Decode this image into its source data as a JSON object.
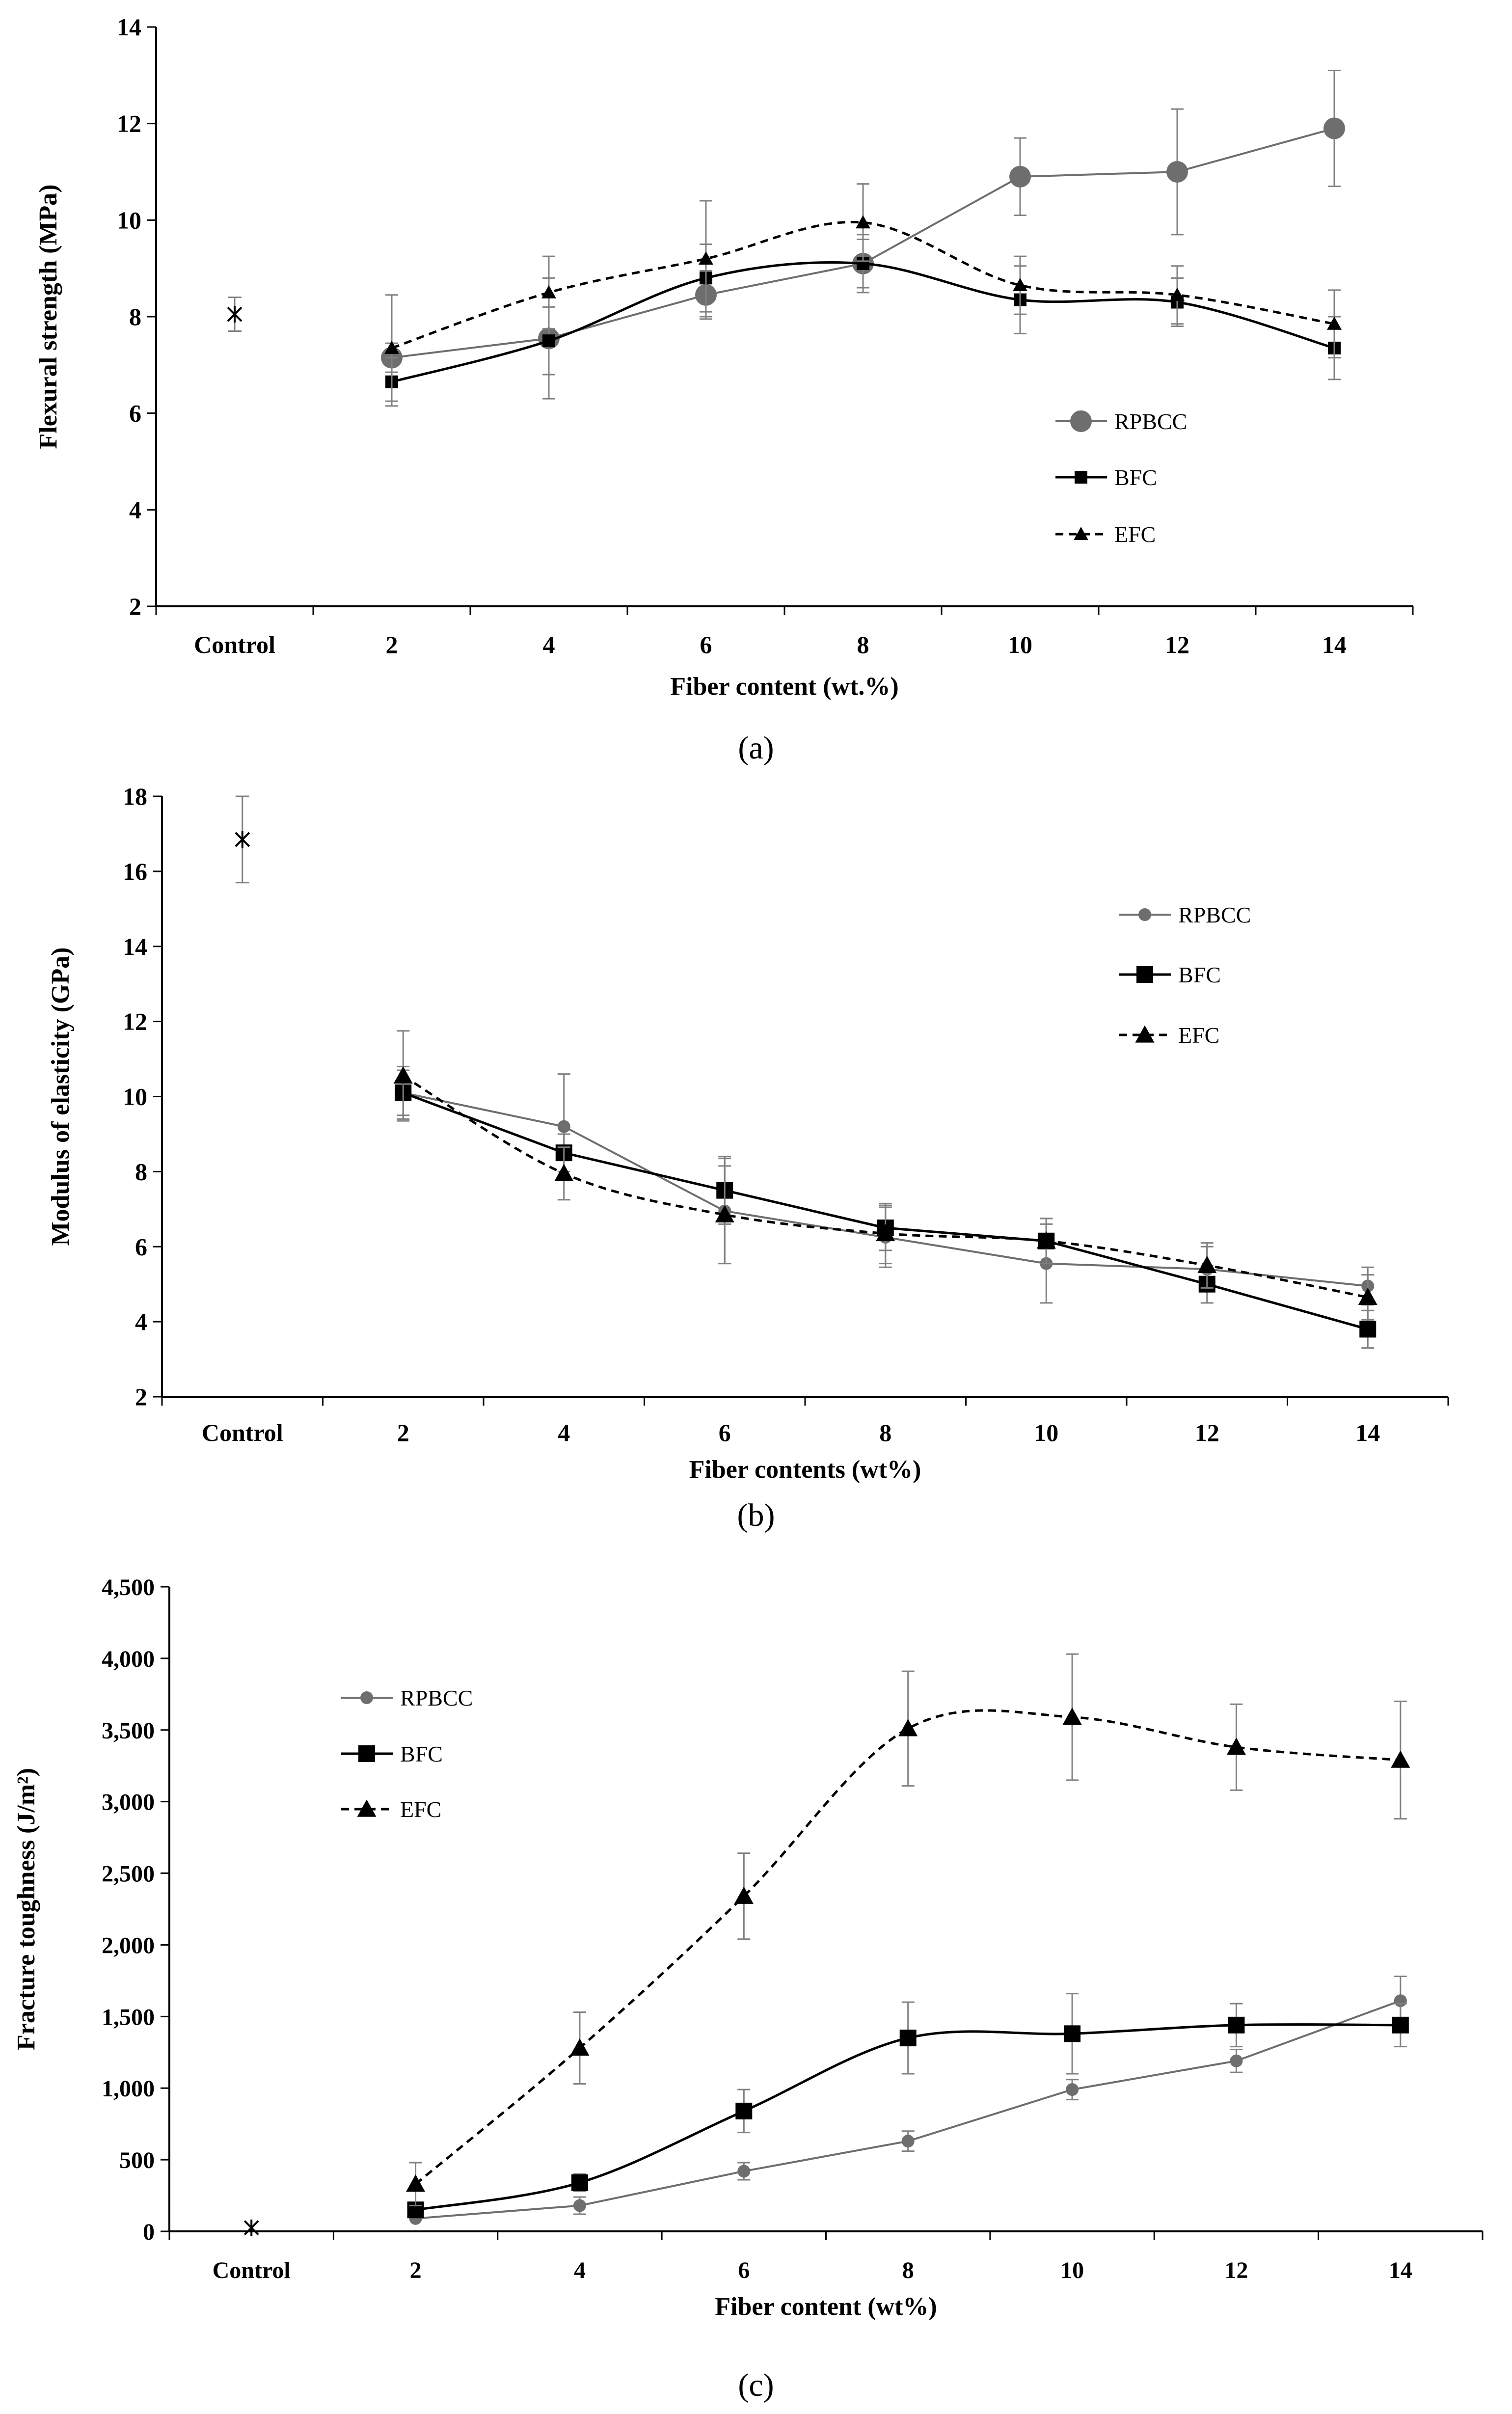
{
  "figure": {
    "panel_captions": [
      "(a)",
      "(b)",
      "(c)"
    ]
  },
  "colors": {
    "rpbcc": "#6e6e6e",
    "bfc": "#000000",
    "efc": "#000000",
    "axis": "#000000",
    "errorbar": "#808080"
  },
  "chart_data": [
    {
      "type": "line",
      "caption": "(a)",
      "title": "",
      "xlabel": "Fiber content (wt.%)",
      "ylabel": "Flexural strength (MPa)",
      "categories": [
        "Control",
        "2",
        "4",
        "6",
        "8",
        "10",
        "12",
        "14"
      ],
      "ylim": [
        2,
        14
      ],
      "yticks": [
        2,
        4,
        6,
        8,
        10,
        12,
        14
      ],
      "ytick_labels": [
        "2",
        "4",
        "6",
        "8",
        "10",
        "12",
        "14"
      ],
      "grid": false,
      "legend": "right-middle",
      "control": {
        "value": 8.05,
        "err": 0.35
      },
      "series": [
        {
          "name": "RPBCC",
          "marker": "circle",
          "marker_size": "large",
          "dash": "solid",
          "color_key": "rpbcc",
          "smooth": false,
          "values": [
            null,
            7.15,
            7.55,
            8.45,
            9.1,
            10.9,
            11.0,
            11.9
          ],
          "errors": [
            null,
            0.3,
            1.25,
            0.5,
            0.6,
            0.8,
            1.3,
            1.2
          ]
        },
        {
          "name": "BFC",
          "marker": "square",
          "marker_size": "small",
          "dash": "solid",
          "color_key": "bfc",
          "smooth": true,
          "values": [
            null,
            6.65,
            7.5,
            8.8,
            9.1,
            8.35,
            8.3,
            7.35
          ],
          "errors": [
            null,
            0.5,
            0.7,
            0.7,
            0.5,
            0.7,
            0.5,
            0.65
          ]
        },
        {
          "name": "EFC",
          "marker": "triangle",
          "marker_size": "small",
          "dash": "dashed",
          "color_key": "efc",
          "smooth": true,
          "values": [
            null,
            7.35,
            8.5,
            9.2,
            9.95,
            8.65,
            8.45,
            7.85
          ],
          "errors": [
            null,
            1.1,
            0.75,
            1.2,
            0.8,
            0.6,
            0.6,
            0.7
          ]
        }
      ]
    },
    {
      "type": "line",
      "caption": "(b)",
      "title": "",
      "xlabel": "Fiber contents (wt%)",
      "ylabel": "Modulus of elasticity (GPa)",
      "categories": [
        "Control",
        "2",
        "4",
        "6",
        "8",
        "10",
        "12",
        "14"
      ],
      "ylim": [
        2,
        18
      ],
      "yticks": [
        2,
        4,
        6,
        8,
        10,
        12,
        14,
        16,
        18
      ],
      "ytick_labels": [
        "2",
        "4",
        "6",
        "8",
        "10",
        "12",
        "14",
        "16",
        "18"
      ],
      "grid": false,
      "legend": "top-right",
      "control": {
        "value": 16.85,
        "err": 1.15
      },
      "series": [
        {
          "name": "RPBCC",
          "marker": "circle",
          "marker_size": "small",
          "dash": "solid",
          "color_key": "rpbcc",
          "smooth": false,
          "values": [
            null,
            10.1,
            9.2,
            6.95,
            6.25,
            5.55,
            5.4,
            4.95
          ],
          "errors": [
            null,
            0.7,
            1.4,
            1.4,
            0.8,
            1.05,
            0.6,
            0.5
          ]
        },
        {
          "name": "BFC",
          "marker": "square",
          "marker_size": "medium",
          "dash": "solid",
          "color_key": "bfc",
          "smooth": false,
          "values": [
            null,
            10.1,
            8.5,
            7.5,
            6.5,
            6.15,
            5.0,
            3.8
          ],
          "errors": [
            null,
            0.6,
            0.5,
            0.9,
            0.6,
            0.6,
            0.5,
            0.5
          ]
        },
        {
          "name": "EFC",
          "marker": "triangle",
          "marker_size": "medium",
          "dash": "dashed",
          "color_key": "efc",
          "smooth": true,
          "values": [
            null,
            10.55,
            7.95,
            6.85,
            6.35,
            6.15,
            5.5,
            4.65
          ],
          "errors": [
            null,
            1.2,
            0.7,
            1.3,
            0.8,
            0.6,
            0.6,
            0.6
          ]
        }
      ]
    },
    {
      "type": "line",
      "caption": "(c)",
      "title": "",
      "xlabel": "Fiber content (wt%)",
      "ylabel": "Fracture toughness (J/m²)",
      "categories": [
        "Control",
        "2",
        "4",
        "6",
        "8",
        "10",
        "12",
        "14"
      ],
      "ylim": [
        0,
        4500
      ],
      "yticks": [
        0,
        500,
        1000,
        1500,
        2000,
        2500,
        3000,
        3500,
        4000,
        4500
      ],
      "ytick_labels": [
        "0",
        "500",
        "1,000",
        "1,500",
        "2,000",
        "2,500",
        "3,000",
        "3,500",
        "4,000",
        "4,500"
      ],
      "grid": false,
      "legend": "top-left",
      "control": {
        "value": 25,
        "err": 0
      },
      "series": [
        {
          "name": "RPBCC",
          "marker": "circle",
          "marker_size": "small",
          "dash": "solid",
          "color_key": "rpbcc",
          "smooth": false,
          "values": [
            null,
            90,
            180,
            420,
            630,
            990,
            1190,
            1610
          ],
          "errors": [
            null,
            0,
            60,
            60,
            70,
            70,
            80,
            170
          ]
        },
        {
          "name": "BFC",
          "marker": "square",
          "marker_size": "medium",
          "dash": "solid",
          "color_key": "bfc",
          "smooth": true,
          "values": [
            null,
            150,
            340,
            840,
            1350,
            1380,
            1440,
            1440
          ],
          "errors": [
            null,
            0,
            60,
            150,
            250,
            280,
            150,
            150
          ]
        },
        {
          "name": "EFC",
          "marker": "triangle",
          "marker_size": "medium",
          "dash": "dashed",
          "color_key": "efc",
          "smooth": true,
          "values": [
            null,
            330,
            1280,
            2340,
            3510,
            3590,
            3380,
            3290
          ],
          "errors": [
            null,
            150,
            250,
            300,
            400,
            440,
            300,
            410
          ]
        }
      ]
    }
  ]
}
